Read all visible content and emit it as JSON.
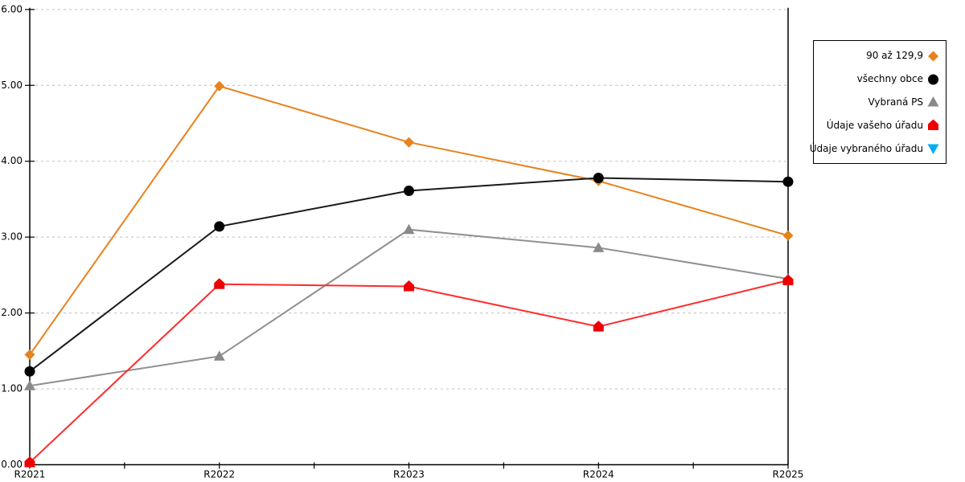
{
  "chart_data": {
    "type": "line",
    "title": "",
    "xlabel": "",
    "ylabel": "",
    "categories": [
      "R2021",
      "R2022",
      "R2023",
      "R2024",
      "R2025"
    ],
    "series": [
      {
        "name": "90 až 129,9",
        "marker": "diamond",
        "color": "#e8821c",
        "marker_color": "#e8821c",
        "values": [
          1.45,
          4.99,
          4.25,
          3.74,
          3.02
        ]
      },
      {
        "name": "všechny obce",
        "marker": "circle",
        "color": "#1a1a1a",
        "marker_color": "#000000",
        "values": [
          1.23,
          3.14,
          3.61,
          3.78,
          3.73
        ]
      },
      {
        "name": "Vybraná PS",
        "marker": "triangle-up",
        "color": "#909090",
        "marker_color": "#8a8a8a",
        "values": [
          1.04,
          1.43,
          3.1,
          2.86,
          2.45
        ]
      },
      {
        "name": "Údaje vašeho úřadu",
        "marker": "pentagon",
        "color": "#ff2a2a",
        "marker_color": "#ee0000",
        "values": [
          0.03,
          2.38,
          2.35,
          1.82,
          2.43
        ]
      },
      {
        "name": "Údaje vybraného úřadu",
        "marker": "triangle-down",
        "color": "#00aeef",
        "marker_color": "#00aeef",
        "values": []
      }
    ],
    "ylim": [
      0,
      6
    ],
    "y_ticks": [
      "0.00",
      "1.00",
      "2.00",
      "3.00",
      "4.00",
      "5.00",
      "6.00"
    ],
    "grid": "horizontal-dashed",
    "legend_position": "top-right"
  },
  "colors": {
    "background": "#ffffff",
    "axis": "#000000",
    "grid": "#c8c8c8",
    "legend_border": "#000000",
    "text": "#000000"
  }
}
